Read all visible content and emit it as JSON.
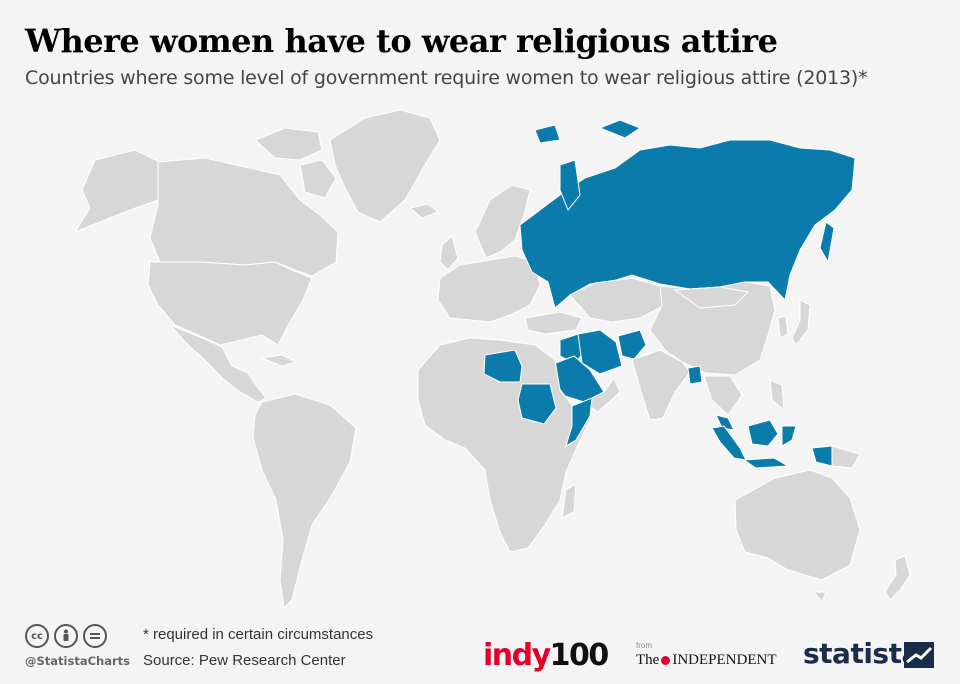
{
  "header": {
    "title": "Where women have to wear religious attire",
    "subtitle": "Countries where some level of government require women to wear religious attire (2013)*"
  },
  "map": {
    "base_color": "#d7d7d7",
    "highlight_color": "#0b7bab",
    "highlighted_regions": [
      "Russia",
      "Iran",
      "Afghanistan",
      "Saudi Arabia",
      "Sudan",
      "Somalia",
      "Libya",
      "Iraq",
      "Bangladesh",
      "Indonesia",
      "Malaysia"
    ]
  },
  "footer": {
    "license_icons": [
      "cc-icon",
      "attribution-icon",
      "no-derivatives-icon"
    ],
    "handle": "@StatistaCharts",
    "note": "* required in certain circumstances",
    "source": "Source: Pew Research Center",
    "indy_part1": "indy",
    "indy_part2": "100",
    "from": "from",
    "independent_the": "The",
    "independent_name": "INDEPENDENT",
    "statista": "statista"
  }
}
